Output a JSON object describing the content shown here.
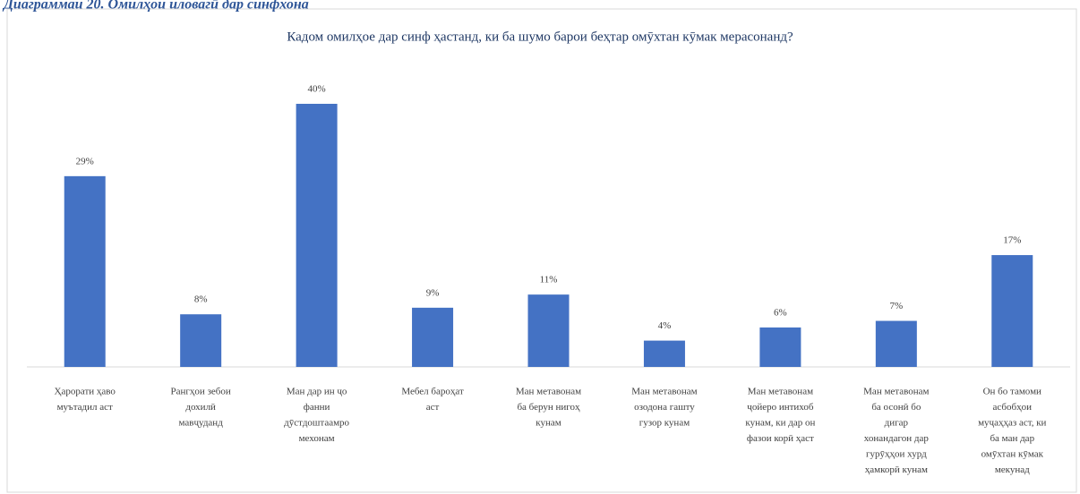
{
  "caption": "Диаграммаи 20. Омилҳои иловагӣ дар синфхона",
  "chart_data": {
    "type": "bar",
    "title": "Кадом омилҳое дар синф ҳастанд, ки ба шумо барои беҳтар омӯхтан кӯмак мерасонанд?",
    "categories": [
      [
        "Ҳарорати ҳаво",
        "муътадил аст"
      ],
      [
        "Рангҳои зебои",
        "дохилӣ",
        "мавҷуданд"
      ],
      [
        "Ман дар ин ҷо",
        "фанни",
        "дӯстдоштаамро",
        "мехонам"
      ],
      [
        "Мебел бароҳат",
        "аст"
      ],
      [
        "Ман метавонам",
        "ба берун нигоҳ",
        "кунам"
      ],
      [
        "Ман метавонам",
        "озодона гашту",
        "гузор кунам"
      ],
      [
        "Ман метавонам",
        "ҷойеро интихоб",
        "кунам, ки дар он",
        "фазои корӣ ҳаст"
      ],
      [
        "Ман метавонам",
        "ба осонӣ бо",
        "дигар",
        "хонандагон дар",
        "гурӯҳҳои хурд",
        "ҳамкорӣ кунам"
      ],
      [
        "Он бо тамоми",
        "асбобҳои",
        "муҷаҳҳаз аст, ки",
        "ба ман дар",
        "омӯхтан кӯмак",
        "мекунад"
      ]
    ],
    "values": [
      29,
      8,
      40,
      9,
      11,
      4,
      6,
      7,
      17
    ],
    "value_labels": [
      "29%",
      "8%",
      "40%",
      "9%",
      "11%",
      "4%",
      "6%",
      "7%",
      "17%"
    ],
    "color": "#4472c4"
  }
}
